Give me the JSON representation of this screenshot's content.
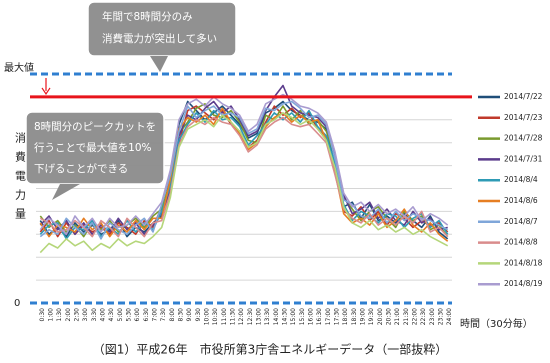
{
  "chart_data": {
    "type": "line",
    "caption": "（図1）平成26年　市役所第3庁舎エネルギーデータ（一部抜粋）",
    "y_label": "消費電力量",
    "x_label": "時間（30分毎）",
    "annotations": [
      {
        "lines": [
          "年間で8時間分のみ",
          "消費電力が突出して多い"
        ]
      },
      {
        "lines": [
          "8時間分のピークカットを",
          "行うことで最大値を10%",
          "下げることができる"
        ]
      }
    ],
    "cut_line": 90,
    "cut_color": "#e8141b",
    "max_line_color": "#2f7fd0",
    "ylim": [
      0,
      100
    ],
    "yticks": [
      0,
      {
        "value": 100,
        "label": "最大値"
      }
    ],
    "grid_lines": [
      10,
      20,
      30,
      40,
      50,
      60,
      70,
      80
    ],
    "categories": [
      "0:30",
      "1:00",
      "1:30",
      "2:00",
      "2:30",
      "3:00",
      "3:30",
      "4:00",
      "4:30",
      "5:00",
      "5:30",
      "6:00",
      "6:30",
      "7:00",
      "7:30",
      "8:00",
      "8:30",
      "9:00",
      "9:30",
      "10:00",
      "10:30",
      "11:00",
      "11:30",
      "12:00",
      "12:30",
      "13:00",
      "13:30",
      "14:00",
      "14:30",
      "15:00",
      "15:30",
      "16:00",
      "16:30",
      "17:00",
      "17:30",
      "18:00",
      "18:30",
      "19:00",
      "19:30",
      "20:00",
      "20:30",
      "21:00",
      "21:30",
      "22:00",
      "22:30",
      "23:00",
      "23:30",
      "24:00"
    ],
    "series": [
      {
        "name": "2014/7/22",
        "color": "#1f4e79",
        "values": [
          36,
          30,
          33,
          29,
          35,
          31,
          34,
          30,
          32,
          36,
          29,
          33,
          31,
          35,
          38,
          55,
          78,
          88,
          84,
          80,
          83,
          86,
          82,
          78,
          72,
          74,
          83,
          85,
          88,
          84,
          82,
          80,
          79,
          76,
          60,
          42,
          44,
          37,
          43,
          36,
          38,
          35,
          39,
          36,
          33,
          38,
          31,
          28
        ]
      },
      {
        "name": "2014/7/23",
        "color": "#c0392b",
        "values": [
          31,
          36,
          29,
          35,
          30,
          34,
          31,
          33,
          30,
          35,
          33,
          30,
          36,
          33,
          42,
          50,
          70,
          84,
          86,
          83,
          80,
          84,
          78,
          75,
          68,
          71,
          79,
          86,
          82,
          85,
          81,
          83,
          76,
          72,
          58,
          40,
          38,
          42,
          36,
          40,
          34,
          39,
          37,
          33,
          36,
          34,
          35,
          31
        ]
      },
      {
        "name": "2014/7/28",
        "color": "#7a9a2e",
        "values": [
          38,
          33,
          36,
          31,
          34,
          29,
          35,
          32,
          36,
          31,
          34,
          37,
          33,
          38,
          41,
          53,
          74,
          79,
          85,
          87,
          82,
          81,
          84,
          79,
          71,
          70,
          82,
          80,
          86,
          80,
          84,
          78,
          80,
          75,
          64,
          46,
          41,
          36,
          40,
          42,
          37,
          33,
          40,
          36,
          38,
          32,
          34,
          29
        ]
      },
      {
        "name": "2014/7/31",
        "color": "#5b3c8c",
        "values": [
          34,
          38,
          32,
          36,
          30,
          35,
          30,
          34,
          31,
          37,
          32,
          35,
          30,
          34,
          39,
          49,
          73,
          82,
          80,
          85,
          88,
          83,
          86,
          80,
          73,
          75,
          84,
          90,
          95,
          86,
          83,
          82,
          81,
          77,
          65,
          47,
          39,
          41,
          44,
          37,
          41,
          36,
          34,
          40,
          35,
          37,
          32,
          33
        ]
      },
      {
        "name": "2014/8/4",
        "color": "#2e9bb5",
        "values": [
          30,
          34,
          35,
          28,
          33,
          32,
          36,
          29,
          33,
          30,
          36,
          31,
          35,
          32,
          40,
          51,
          71,
          78,
          83,
          79,
          84,
          80,
          81,
          77,
          69,
          73,
          78,
          83,
          80,
          83,
          79,
          84,
          77,
          73,
          61,
          43,
          36,
          40,
          38,
          35,
          39,
          38,
          33,
          37,
          39,
          33,
          36,
          30
        ]
      },
      {
        "name": "2014/8/6",
        "color": "#e67e22",
        "values": [
          35,
          29,
          34,
          33,
          31,
          37,
          32,
          35,
          29,
          34,
          31,
          36,
          32,
          37,
          37,
          54,
          76,
          81,
          79,
          82,
          78,
          85,
          79,
          74,
          67,
          70,
          77,
          81,
          83,
          79,
          82,
          79,
          80,
          71,
          57,
          39,
          35,
          37,
          34,
          39,
          33,
          36,
          41,
          34,
          31,
          35,
          30,
          27
        ]
      },
      {
        "name": "2014/8/7",
        "color": "#7fa6d9",
        "values": [
          29,
          32,
          30,
          37,
          33,
          30,
          35,
          28,
          35,
          32,
          30,
          34,
          37,
          31,
          43,
          56,
          75,
          86,
          81,
          84,
          86,
          82,
          83,
          81,
          74,
          76,
          85,
          84,
          87,
          88,
          85,
          81,
          82,
          78,
          63,
          45,
          43,
          38,
          37,
          41,
          35,
          40,
          36,
          39,
          37,
          36,
          34,
          32
        ]
      },
      {
        "name": "2014/8/8",
        "color": "#d98c8c",
        "values": [
          37,
          35,
          31,
          32,
          36,
          33,
          29,
          36,
          33,
          29,
          37,
          33,
          29,
          35,
          36,
          48,
          69,
          77,
          80,
          78,
          81,
          79,
          78,
          73,
          66,
          69,
          76,
          79,
          81,
          78,
          77,
          78,
          74,
          70,
          56,
          41,
          37,
          35,
          39,
          34,
          37,
          34,
          38,
          35,
          40,
          31,
          33,
          29
        ]
      },
      {
        "name": "2014/8/18",
        "color": "#b5d67a",
        "values": [
          22,
          26,
          24,
          28,
          25,
          27,
          23,
          26,
          24,
          28,
          25,
          27,
          26,
          29,
          33,
          46,
          68,
          76,
          78,
          80,
          77,
          82,
          79,
          75,
          68,
          70,
          78,
          80,
          83,
          81,
          78,
          80,
          76,
          71,
          59,
          42,
          35,
          33,
          36,
          32,
          34,
          31,
          33,
          30,
          32,
          29,
          27,
          25
        ]
      },
      {
        "name": "2014/8/19",
        "color": "#a99cd0",
        "values": [
          32,
          37,
          34,
          30,
          38,
          33,
          37,
          31,
          37,
          33,
          34,
          38,
          34,
          39,
          44,
          58,
          80,
          87,
          89,
          86,
          90,
          87,
          85,
          82,
          75,
          78,
          87,
          89,
          91,
          89,
          86,
          85,
          83,
          79,
          66,
          48,
          42,
          44,
          40,
          43,
          39,
          41,
          38,
          42,
          36,
          39,
          37,
          34
        ]
      }
    ]
  }
}
